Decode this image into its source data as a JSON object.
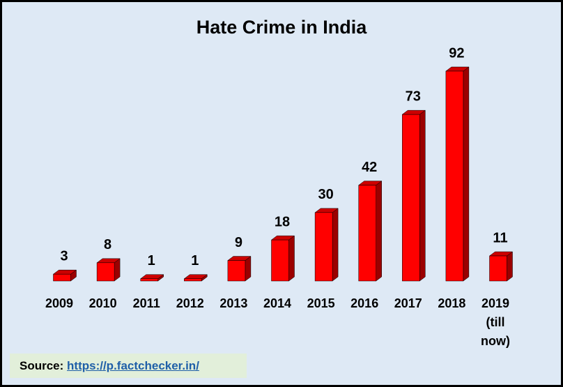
{
  "chart_data": {
    "type": "bar3d",
    "title": "Hate Crime in India",
    "categories": [
      "2009",
      "2010",
      "2011",
      "2012",
      "2013",
      "2014",
      "2015",
      "2016",
      "2017",
      "2018",
      "2019 (till now)"
    ],
    "values": [
      3,
      8,
      1,
      1,
      9,
      18,
      30,
      42,
      73,
      92,
      11
    ],
    "color": "#ff0000",
    "source": {
      "label": "Source:",
      "link": "https://p.factchecker.in/"
    }
  }
}
